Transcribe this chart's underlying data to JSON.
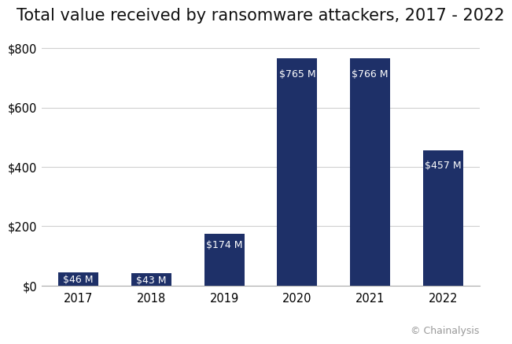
{
  "title": "Total value received by ransomware attackers, 2017 - 2022",
  "categories": [
    "2017",
    "2018",
    "2019",
    "2020",
    "2021",
    "2022"
  ],
  "values": [
    46,
    43,
    174,
    765,
    766,
    457
  ],
  "labels": [
    "$46 M",
    "$43 M",
    "$174 M",
    "$765 M",
    "$766 M",
    "$457 M"
  ],
  "bar_color": "#1e3068",
  "background_color": "#ffffff",
  "ylim": [
    0,
    850
  ],
  "yticks": [
    0,
    200,
    400,
    600,
    800
  ],
  "ytick_labels": [
    "$0",
    "$200",
    "$400",
    "$600",
    "$800"
  ],
  "grid_color": "#d0d0d0",
  "label_color": "#ffffff",
  "label_fontsize": 9,
  "title_fontsize": 15,
  "tick_fontsize": 10.5,
  "watermark": "© Chainalysis",
  "watermark_color": "#999999",
  "watermark_fontsize": 9
}
